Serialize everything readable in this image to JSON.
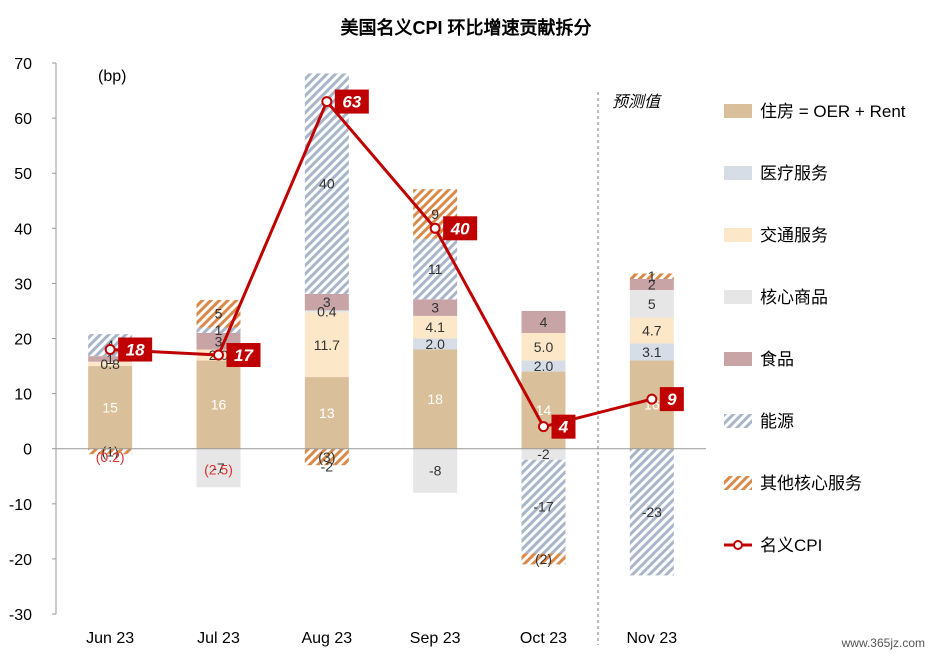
{
  "chart_data": {
    "type": "bar",
    "title": "美国名义CPI 环比增速贡献拆分",
    "unit_label": "(bp)",
    "forecast_label": "预测值",
    "watermark": "www.365jz.com",
    "ylim": [
      -30,
      70
    ],
    "yticks": [
      70,
      60,
      50,
      40,
      30,
      20,
      10,
      0,
      -10,
      -20,
      -30
    ],
    "categories": [
      "Jun 23",
      "Jul 23",
      "Aug 23",
      "Sep 23",
      "Oct 23",
      "Nov 23"
    ],
    "series": [
      {
        "key": "housing",
        "name": "住房 = OER + Rent",
        "color": "#d9c09a",
        "pattern": "solid",
        "values": [
          15,
          16,
          13,
          18,
          14,
          16
        ],
        "labels": [
          "15",
          "16",
          "13",
          "18",
          "14",
          "16"
        ],
        "label_color": "#ffffff"
      },
      {
        "key": "medical",
        "name": "医疗服务",
        "color": "#d6dde6",
        "pattern": "solid",
        "values": [
          0,
          0,
          0,
          2.0,
          2.0,
          3.1
        ],
        "labels": [
          "",
          "",
          "",
          "2.0",
          "2.0",
          "3.1"
        ],
        "label_color": "#333333"
      },
      {
        "key": "transport",
        "name": "交通服务",
        "color": "#fce8c8",
        "pattern": "solid",
        "values": [
          0.8,
          2.0,
          11.7,
          4.1,
          5.0,
          4.7
        ],
        "labels": [
          "0.8",
          "2.0",
          "11.7",
          "4.1",
          "5.0",
          "4.7"
        ],
        "label_color": "#333333"
      },
      {
        "key": "core_goods",
        "name": "核心商品",
        "color": "#e6e6e6",
        "pattern": "solid",
        "values": [
          0,
          -7,
          0.4,
          -8,
          -2,
          5
        ],
        "labels": [
          "",
          "-7",
          "0.4",
          "-8",
          "-2",
          "5"
        ],
        "label_color": "#333333"
      },
      {
        "key": "food",
        "name": "食品",
        "color": "#c8a4a6",
        "pattern": "solid",
        "values": [
          1,
          3,
          3,
          3,
          4,
          2
        ],
        "labels": [
          "1",
          "3",
          "3",
          "3",
          "4",
          "2"
        ],
        "label_color": "#333333"
      },
      {
        "key": "energy",
        "name": "能源",
        "color": "#a9b5c9",
        "pattern": "hatch",
        "values": [
          4,
          1,
          40,
          11,
          -17,
          -23
        ],
        "labels": [
          "4",
          "1",
          "40",
          "11",
          "-17",
          "-23"
        ],
        "label_color": "#333333"
      },
      {
        "key": "other_core",
        "name": "其他核心服务",
        "color": "#d98a4a",
        "pattern": "hatch",
        "values": [
          -1,
          5,
          -3,
          9,
          -2,
          1
        ],
        "labels": [
          "(1)",
          "5",
          "(3)",
          "9",
          "(2)",
          "1"
        ],
        "label_color": "#333333"
      }
    ],
    "extra_labels": [
      {
        "category": "Jun 23",
        "text": "(0.2)",
        "value": -0.2,
        "color": "#e0302f"
      },
      {
        "category": "Jul 23",
        "text": "(2.5)",
        "value": -2.5,
        "color": "#e0302f"
      },
      {
        "category": "Aug 23",
        "text": "-2",
        "value": -2,
        "color": "#333333"
      }
    ],
    "line_series": {
      "name": "名义CPI",
      "color": "#c00000",
      "values": [
        18,
        17,
        63,
        40,
        4,
        9
      ],
      "labels": [
        "18",
        "17",
        "63",
        "40",
        "4",
        "9"
      ]
    },
    "legend_position": "right",
    "grid": false
  }
}
